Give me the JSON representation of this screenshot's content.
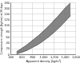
{
  "chart_data": {
    "type": "band",
    "x_label": "Apparent density (kg/m³)",
    "y_label": "Compressive strength (kg/cm²) at 28 days",
    "x": [
      500,
      600,
      700,
      800,
      900,
      1000,
      1100,
      1200,
      1300,
      1400,
      1500
    ],
    "upper": [
      10,
      22,
      35,
      50,
      65,
      82,
      100,
      120,
      140,
      162,
      180
    ],
    "lower": [
      2,
      8,
      15,
      25,
      35,
      48,
      62,
      78,
      95,
      115,
      135
    ],
    "color": "#707070",
    "xlim": [
      400,
      1600
    ],
    "xticks": [
      400,
      600,
      800,
      1000,
      1200,
      1400,
      1600
    ],
    "ylim": [
      0,
      180
    ],
    "yticks": [
      0,
      20,
      40,
      60,
      80,
      100,
      120,
      140,
      160,
      180
    ],
    "grid": true
  }
}
